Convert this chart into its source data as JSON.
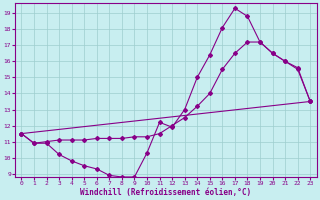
{
  "xlabel": "Windchill (Refroidissement éolien,°C)",
  "background_color": "#c8eef0",
  "line_color": "#880088",
  "grid_color": "#9ecece",
  "xlim": [
    -0.5,
    23.5
  ],
  "ylim": [
    8.8,
    19.6
  ],
  "xticks": [
    0,
    1,
    2,
    3,
    4,
    5,
    6,
    7,
    8,
    9,
    10,
    11,
    12,
    13,
    14,
    15,
    16,
    17,
    18,
    19,
    20,
    21,
    22,
    23
  ],
  "yticks": [
    9,
    10,
    11,
    12,
    13,
    14,
    15,
    16,
    17,
    18,
    19
  ],
  "series": [
    {
      "x": [
        0,
        1,
        2,
        3,
        4,
        5,
        6,
        7,
        8,
        9,
        10,
        11,
        12,
        13,
        14,
        15,
        16,
        17,
        18,
        19,
        20,
        21,
        22,
        23
      ],
      "y": [
        11.5,
        10.9,
        10.9,
        10.2,
        9.8,
        9.5,
        9.3,
        8.9,
        8.8,
        8.8,
        10.3,
        12.2,
        11.9,
        13.0,
        15.0,
        16.4,
        18.1,
        19.3,
        18.8,
        17.2,
        16.5,
        16.0,
        15.6,
        13.5
      ]
    },
    {
      "x": [
        0,
        1,
        2,
        3,
        4,
        5,
        6,
        7,
        8,
        9,
        10,
        11,
        12,
        13,
        14,
        15,
        16,
        17,
        18,
        19,
        20,
        21,
        22,
        23
      ],
      "y": [
        11.5,
        10.9,
        11.0,
        11.1,
        11.1,
        11.1,
        11.2,
        11.2,
        11.2,
        11.3,
        11.3,
        11.5,
        12.0,
        12.5,
        13.2,
        14.0,
        15.5,
        16.5,
        17.2,
        17.2,
        16.5,
        16.0,
        15.5,
        13.5
      ]
    },
    {
      "x": [
        0,
        23
      ],
      "y": [
        11.5,
        13.5
      ]
    }
  ]
}
